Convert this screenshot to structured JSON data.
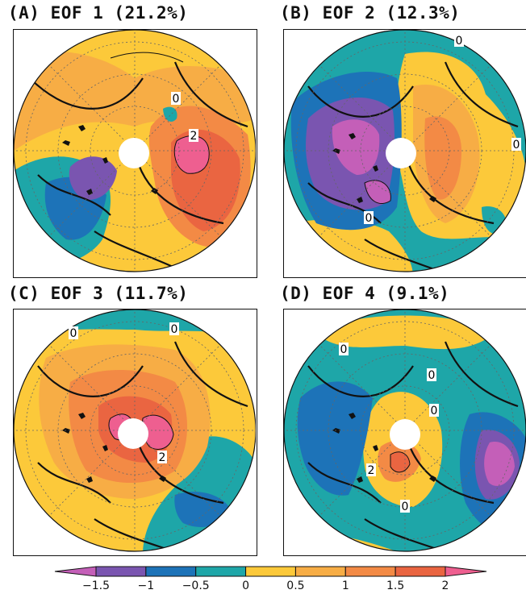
{
  "colors": {
    "c_lt_m15": "#c45fb8",
    "c_m15_m1": "#7a55b0",
    "c_m1_m05": "#1d73b8",
    "c_m05_0": "#1ea6a8",
    "c_0_05": "#fcc93a",
    "c_05_1": "#f7ad45",
    "c_1_15": "#f38a45",
    "c_15_2": "#ea6541",
    "c_gt_2": "#ee5f90",
    "land": "#111111",
    "grid": "#666666"
  },
  "chart_data": [
    {
      "type": "polar-contour-map",
      "panel": "A",
      "title": "(A) EOF 1 (21.2%)",
      "contour_labels": [
        "0",
        "2"
      ]
    },
    {
      "type": "polar-contour-map",
      "panel": "B",
      "title": "(B) EOF 2 (12.3%)",
      "contour_labels": [
        "0",
        "0",
        "0"
      ]
    },
    {
      "type": "polar-contour-map",
      "panel": "C",
      "title": "(C) EOF 3 (11.7%)",
      "contour_labels": [
        "0",
        "0",
        "2"
      ]
    },
    {
      "type": "polar-contour-map",
      "panel": "D",
      "title": "(D) EOF 4 (9.1%)",
      "contour_labels": [
        "0",
        "0",
        "0",
        "2",
        "0"
      ]
    }
  ],
  "colorbar": {
    "ticks": [
      "-1.5",
      "-1",
      "-0.5",
      "0",
      "0.5",
      "1",
      "1.5",
      "2"
    ],
    "range": [
      -2,
      2.5
    ]
  }
}
